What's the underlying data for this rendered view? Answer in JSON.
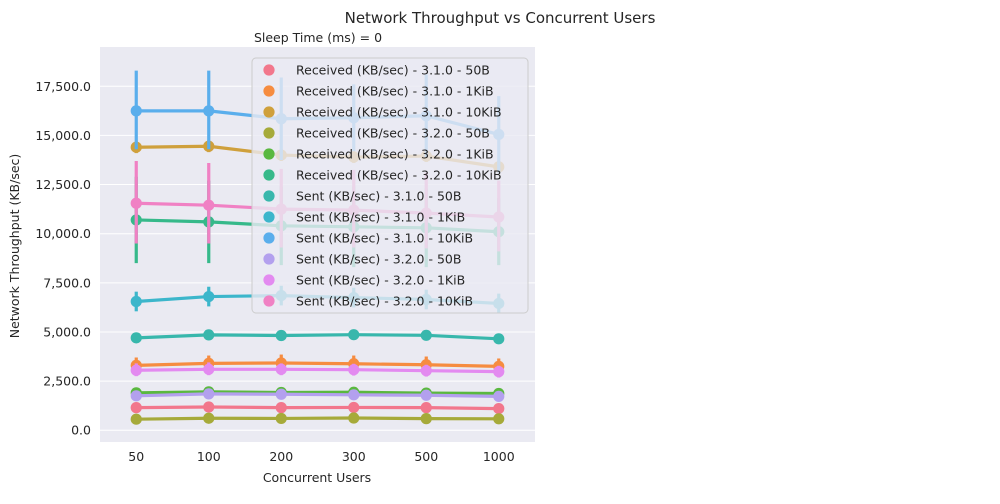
{
  "chart_data": {
    "type": "line",
    "title": "Network Throughput vs Concurrent Users",
    "subtitle": "Sleep Time (ms) = 0",
    "xlabel": "Concurrent Users",
    "ylabel": "Network Throughput (KB/sec)",
    "categories": [
      "50",
      "100",
      "200",
      "300",
      "500",
      "1000"
    ],
    "ylim": [
      -600,
      19500
    ],
    "yticks": [
      0,
      2500,
      5000,
      7500,
      10000,
      12500,
      15000,
      17500
    ],
    "ytick_labels": [
      "0.0",
      "2,500.0",
      "5,000.0",
      "7,500.0",
      "10,000.0",
      "12,500.0",
      "15,000.0",
      "17,500.0"
    ],
    "grid": true,
    "legend_position": "top-right",
    "series": [
      {
        "name": "Received (KB/sec) - 3.1.0 - 50B",
        "color": "#f2778c",
        "values": [
          1150,
          1180,
          1150,
          1160,
          1150,
          1100
        ],
        "err": [
          [
            1000,
            1300
          ],
          [
            1000,
            1350
          ],
          [
            1000,
            1300
          ],
          [
            1000,
            1300
          ],
          [
            1000,
            1300
          ],
          [
            950,
            1250
          ]
        ]
      },
      {
        "name": "Received (KB/sec) - 3.1.0 - 1KiB",
        "color": "#f68c40",
        "values": [
          3300,
          3400,
          3420,
          3380,
          3330,
          3250
        ],
        "err": [
          [
            2900,
            3700
          ],
          [
            3000,
            3800
          ],
          [
            3000,
            3850
          ],
          [
            2950,
            3800
          ],
          [
            2900,
            3750
          ],
          [
            2850,
            3650
          ]
        ]
      },
      {
        "name": "Received (KB/sec) - 3.1.0 - 10KiB",
        "color": "#cfa03c",
        "values": [
          14400,
          14450,
          14000,
          13900,
          13950,
          13400
        ],
        "err": [
          [
            14100,
            14700
          ],
          [
            14150,
            14750
          ],
          [
            13700,
            14300
          ],
          [
            13600,
            14200
          ],
          [
            13650,
            14250
          ],
          [
            13100,
            13700
          ]
        ]
      },
      {
        "name": "Received (KB/sec) - 3.2.0 - 50B",
        "color": "#a6aa3a",
        "values": [
          560,
          610,
          600,
          620,
          590,
          580
        ],
        "err": [
          [
            450,
            680
          ],
          [
            500,
            720
          ],
          [
            490,
            710
          ],
          [
            510,
            730
          ],
          [
            480,
            700
          ],
          [
            470,
            690
          ]
        ]
      },
      {
        "name": "Received (KB/sec) - 3.2.0 - 1KiB",
        "color": "#5ab83f",
        "values": [
          1900,
          1950,
          1920,
          1930,
          1890,
          1870
        ],
        "err": [
          [
            1700,
            2100
          ],
          [
            1750,
            2150
          ],
          [
            1720,
            2120
          ],
          [
            1730,
            2130
          ],
          [
            1690,
            2090
          ],
          [
            1670,
            2070
          ]
        ]
      },
      {
        "name": "Received (KB/sec) - 3.2.0 - 10KiB",
        "color": "#36b98a",
        "values": [
          10700,
          10600,
          10400,
          10350,
          10300,
          10100
        ],
        "err": [
          [
            8500,
            12900
          ],
          [
            8500,
            12700
          ],
          [
            8400,
            12400
          ],
          [
            8300,
            12400
          ],
          [
            8300,
            12300
          ],
          [
            8400,
            11800
          ]
        ]
      },
      {
        "name": "Sent (KB/sec) - 3.1.0 - 50B",
        "color": "#38b7ac",
        "values": [
          4700,
          4850,
          4820,
          4860,
          4830,
          4650
        ],
        "err": [
          [
            4550,
            4850
          ],
          [
            4700,
            5000
          ],
          [
            4670,
            4970
          ],
          [
            4710,
            5010
          ],
          [
            4680,
            4980
          ],
          [
            4500,
            4800
          ]
        ]
      },
      {
        "name": "Sent (KB/sec) - 3.1.0 - 1KiB",
        "color": "#3cb6cb",
        "values": [
          6550,
          6800,
          6850,
          6750,
          6650,
          6450
        ],
        "err": [
          [
            6050,
            7050
          ],
          [
            6300,
            7300
          ],
          [
            6350,
            7350
          ],
          [
            6250,
            7250
          ],
          [
            6150,
            7150
          ],
          [
            5950,
            6950
          ]
        ]
      },
      {
        "name": "Sent (KB/sec) - 3.1.0 - 10KiB",
        "color": "#5aaeec",
        "values": [
          16250,
          16250,
          15850,
          15900,
          16000,
          15050
        ],
        "err": [
          [
            14300,
            18300
          ],
          [
            14300,
            18300
          ],
          [
            13750,
            17950
          ],
          [
            14200,
            17600
          ],
          [
            13900,
            18100
          ],
          [
            13100,
            17000
          ]
        ]
      },
      {
        "name": "Sent (KB/sec) - 3.2.0 - 50B",
        "color": "#b3a0ee",
        "values": [
          1750,
          1850,
          1830,
          1800,
          1780,
          1720
        ],
        "err": [
          [
            1550,
            2000
          ],
          [
            1600,
            2100
          ],
          [
            1580,
            2080
          ],
          [
            1550,
            2050
          ],
          [
            1530,
            2030
          ],
          [
            1500,
            1950
          ]
        ]
      },
      {
        "name": "Sent (KB/sec) - 3.2.0 - 1KiB",
        "color": "#e38af0",
        "values": [
          3050,
          3100,
          3100,
          3080,
          3030,
          2980
        ],
        "err": [
          [
            2750,
            3400
          ],
          [
            2800,
            3450
          ],
          [
            2800,
            3400
          ],
          [
            2780,
            3380
          ],
          [
            2730,
            3330
          ],
          [
            2680,
            3280
          ]
        ]
      },
      {
        "name": "Sent (KB/sec) - 3.2.0 - 10KiB",
        "color": "#f081c4",
        "values": [
          11550,
          11450,
          11250,
          11200,
          11050,
          10850
        ],
        "err": [
          [
            9500,
            13700
          ],
          [
            9500,
            13600
          ],
          [
            9300,
            13300
          ],
          [
            9300,
            13250
          ],
          [
            9250,
            13100
          ],
          [
            9100,
            12700
          ]
        ]
      }
    ]
  }
}
